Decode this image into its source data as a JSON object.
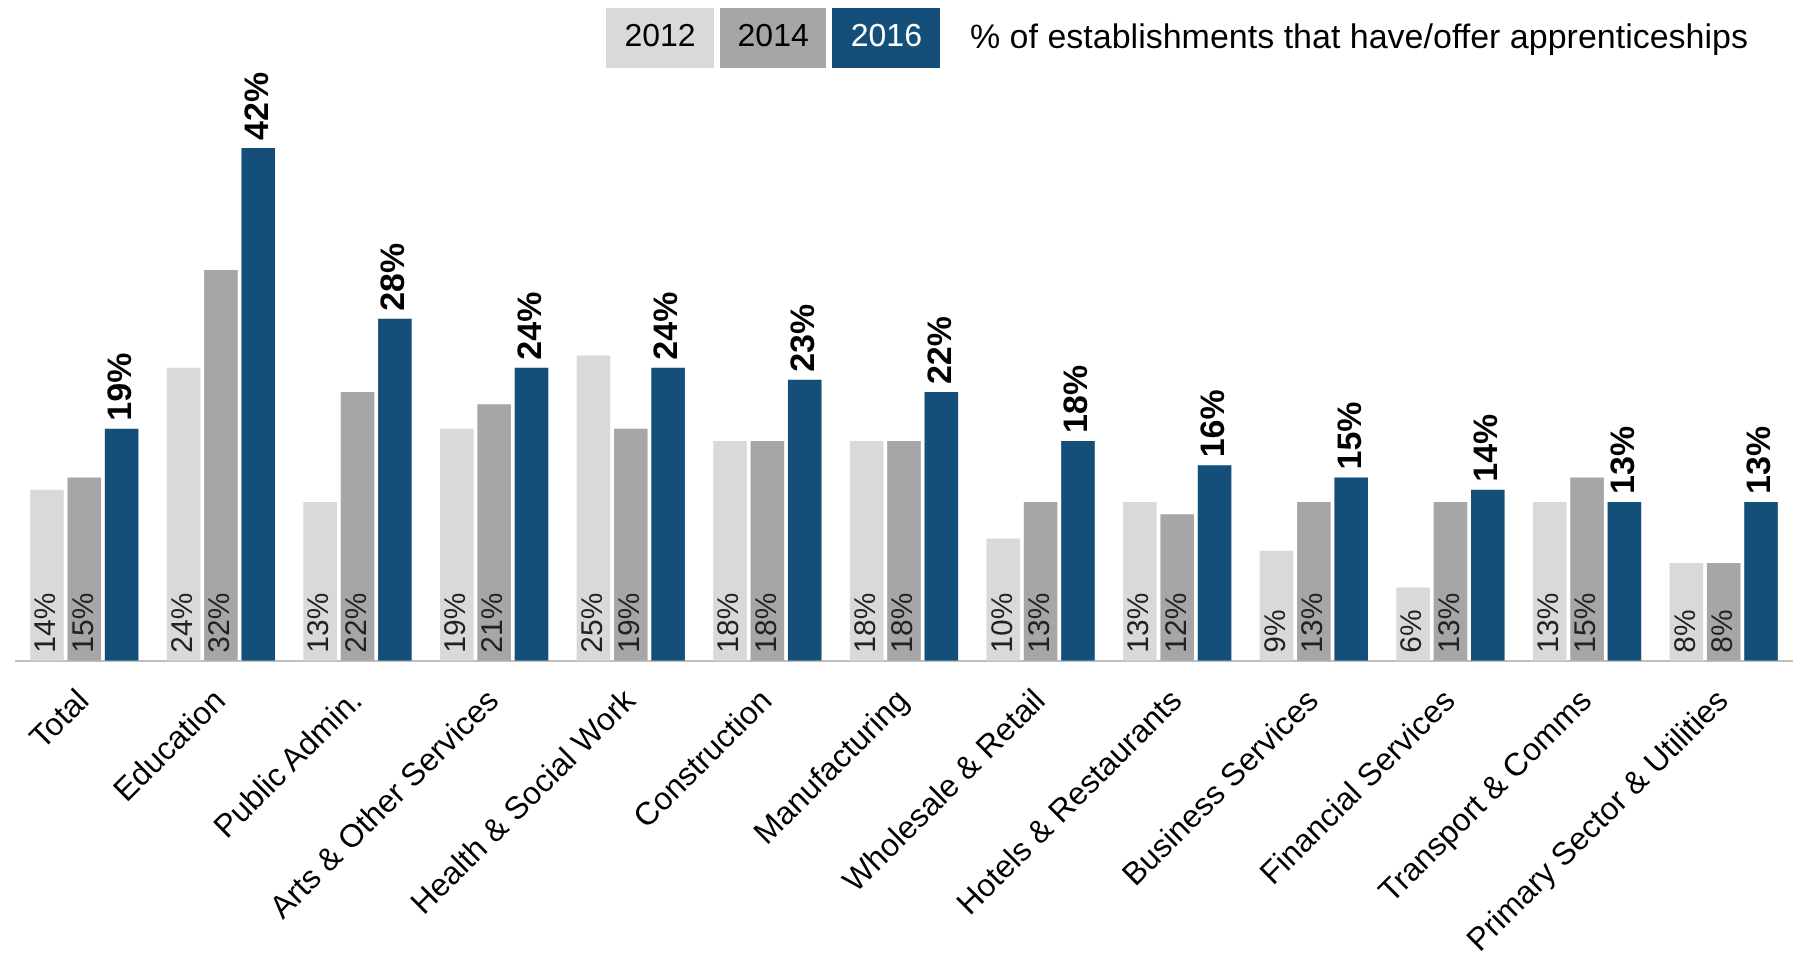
{
  "chart_data": {
    "type": "bar",
    "legend_title": "% of establishments that have/offer apprenticeships",
    "legend": "top",
    "grid": false,
    "tick_labels": "x",
    "categories": [
      "Total",
      "Education",
      "Public Admin.",
      "Arts & Other Services",
      "Health & Social Work",
      "Construction",
      "Manufacturing",
      "Wholesale & Retail",
      "Hotels & Restaurants",
      "Business Services",
      "Financial Services",
      "Transport & Comms",
      "Primary Sector & Utilities"
    ],
    "series": [
      {
        "name": "2012",
        "color": "#d9d9d9",
        "values": [
          14,
          24,
          13,
          19,
          25,
          18,
          18,
          10,
          13,
          9,
          6,
          13,
          8
        ],
        "value_labels": [
          "14%",
          "24%",
          "13%",
          "19%",
          "25%",
          "18%",
          "18%",
          "10%",
          "13%",
          "9%",
          "6%",
          "13%",
          "8%"
        ]
      },
      {
        "name": "2014",
        "color": "#a6a6a6",
        "values": [
          15,
          32,
          22,
          21,
          19,
          18,
          18,
          13,
          12,
          13,
          13,
          15,
          8
        ],
        "value_labels": [
          "15%",
          "32%",
          "22%",
          "21%",
          "19%",
          "18%",
          "18%",
          "13%",
          "12%",
          "13%",
          "13%",
          "15%",
          "8%"
        ]
      },
      {
        "name": "2016",
        "color": "#134f78",
        "values": [
          19,
          42,
          28,
          24,
          24,
          23,
          22,
          18,
          16,
          15,
          14,
          13,
          13
        ],
        "value_labels": [
          "19%",
          "42%",
          "28%",
          "24%",
          "24%",
          "23%",
          "22%",
          "18%",
          "16%",
          "15%",
          "14%",
          "13%",
          "13%"
        ]
      }
    ]
  }
}
